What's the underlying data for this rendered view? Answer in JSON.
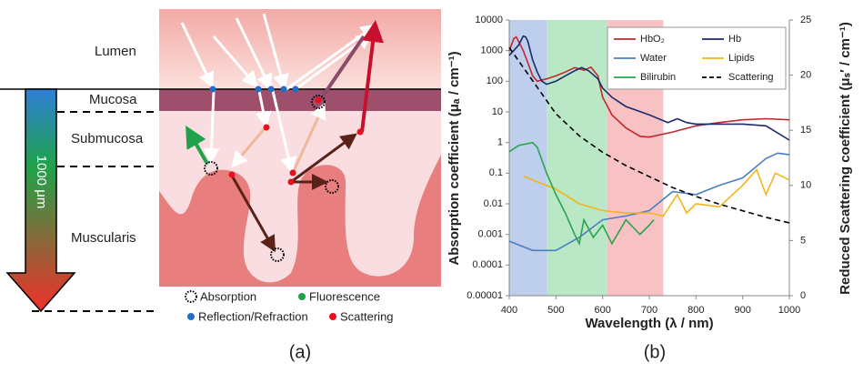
{
  "diagram": {
    "layers": [
      "Lumen",
      "Mucosa",
      "Submucosa",
      "Muscularis"
    ],
    "scale_label": "1000 μm",
    "legend": [
      "Absorption",
      "Fluorescence",
      "Reflection/Refraction",
      "Scattering"
    ],
    "panel_label": "(a)"
  },
  "chart_data": {
    "type": "line",
    "panel_label": "(b)",
    "x_label": "Wavelength (λ / nm)",
    "y_label": "Absorption coefficient (μₐ / cm⁻¹)",
    "y2_label": "Reduced Scattering coefficient (μₛ′ / cm⁻¹)",
    "xlim": [
      400,
      1000
    ],
    "xticks": [
      400,
      500,
      600,
      700,
      800,
      900,
      1000
    ],
    "ylim": [
      1e-05,
      10000
    ],
    "yticks": [
      1e-05,
      0.0001,
      0.001,
      0.01,
      0.1,
      1,
      10,
      100,
      1000,
      10000
    ],
    "log_y": true,
    "y2lim": [
      0,
      25
    ],
    "y2ticks": [
      0,
      5,
      10,
      15,
      20,
      25
    ],
    "legend": "upper right",
    "bands": [
      {
        "range": [
          400,
          480
        ],
        "color": "#b3c6ea"
      },
      {
        "range": [
          480,
          610
        ],
        "color": "#aee4bd"
      },
      {
        "range": [
          610,
          730
        ],
        "color": "#f7b6b8"
      }
    ],
    "series": [
      {
        "name": "HbO₂",
        "color": "#c0282d",
        "x": [
          400,
          410,
          415,
          420,
          430,
          440,
          450,
          460,
          480,
          500,
          520,
          540,
          560,
          575,
          590,
          600,
          620,
          650,
          680,
          700,
          750,
          800,
          850,
          900,
          950,
          1000
        ],
        "values": [
          1000,
          2500,
          2800,
          2000,
          1000,
          400,
          150,
          100,
          120,
          150,
          200,
          280,
          230,
          290,
          150,
          30,
          8,
          3,
          1.6,
          1.5,
          2.2,
          3.5,
          4.5,
          5.5,
          6,
          5.5
        ]
      },
      {
        "name": "Hb",
        "color": "#1b2a6b",
        "x": [
          400,
          420,
          430,
          435,
          440,
          450,
          460,
          470,
          480,
          500,
          520,
          540,
          555,
          570,
          590,
          600,
          620,
          650,
          700,
          740,
          760,
          780,
          800,
          850,
          900,
          950,
          1000
        ],
        "values": [
          700,
          1500,
          3000,
          2800,
          2000,
          500,
          200,
          100,
          80,
          100,
          150,
          220,
          280,
          220,
          120,
          60,
          30,
          15,
          8,
          4.5,
          6,
          4.5,
          4,
          4,
          4,
          3.5,
          1.2
        ]
      },
      {
        "name": "Water",
        "color": "#4a7fc1",
        "x": [
          400,
          450,
          500,
          550,
          600,
          650,
          700,
          750,
          800,
          850,
          900,
          950,
          975,
          1000
        ],
        "values": [
          0.0006,
          0.0003,
          0.0003,
          0.0008,
          0.003,
          0.004,
          0.006,
          0.025,
          0.02,
          0.04,
          0.07,
          0.3,
          0.45,
          0.4
        ]
      },
      {
        "name": "Lipids",
        "color": "#f2b51b",
        "x": [
          430,
          450,
          500,
          550,
          600,
          650,
          700,
          730,
          760,
          780,
          800,
          850,
          900,
          930,
          950,
          970,
          1000
        ],
        "values": [
          0.08,
          0.06,
          0.03,
          0.01,
          0.006,
          0.005,
          0.005,
          0.004,
          0.02,
          0.005,
          0.01,
          0.008,
          0.04,
          0.13,
          0.02,
          0.1,
          0.06
        ]
      },
      {
        "name": "Bilirubin",
        "color": "#2aa44d",
        "x": [
          400,
          420,
          450,
          460,
          480,
          500,
          520,
          540,
          550,
          560,
          580,
          600,
          620,
          650,
          680,
          700,
          710
        ],
        "values": [
          0.5,
          0.8,
          1,
          0.7,
          0.1,
          0.02,
          0.005,
          0.001,
          0.0005,
          0.003,
          0.0008,
          0.002,
          0.0005,
          0.003,
          0.001,
          0.002,
          0.003
        ]
      },
      {
        "name": "Scattering",
        "color": "#000000",
        "dashed": true,
        "axis": "y2",
        "x": [
          400,
          450,
          500,
          550,
          600,
          650,
          700,
          750,
          800,
          850,
          900,
          950,
          1000
        ],
        "values": [
          22.5,
          19.5,
          16.5,
          14.5,
          13,
          11.8,
          10.8,
          9.8,
          9,
          8.3,
          7.7,
          7.1,
          6.6
        ]
      }
    ]
  }
}
